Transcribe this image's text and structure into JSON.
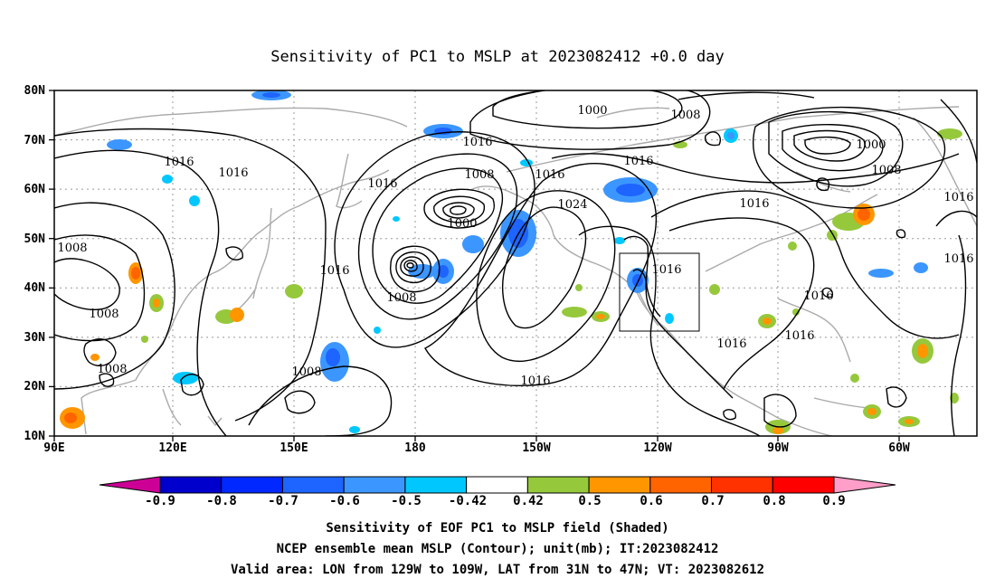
{
  "title": "Sensitivity of PC1 to MSLP at 2023082412 +0.0 day",
  "lat_labels": [
    "80N",
    "70N",
    "60N",
    "50N",
    "40N",
    "30N",
    "20N",
    "10N"
  ],
  "lon_labels": [
    "90E",
    "120E",
    "150E",
    "180",
    "150W",
    "120W",
    "90W",
    "60W"
  ],
  "contour_labels": [
    "1000",
    "1008",
    "1016",
    "1016",
    "1000",
    "1008",
    "1016",
    "1016",
    "1016",
    "1016",
    "1008",
    "1016",
    "1024",
    "1000",
    "1016",
    "1008",
    "1008",
    "1008",
    "1016",
    "1008",
    "1016",
    "1016",
    "1016",
    "1016",
    "1008",
    "1016",
    "1016"
  ],
  "colorbar": {
    "labels": [
      "-0.9",
      "-0.8",
      "-0.7",
      "-0.6",
      "-0.5",
      "-0.42",
      "0.42",
      "0.5",
      "0.6",
      "0.7",
      "0.8",
      "0.9"
    ],
    "colors": [
      "#0000cd",
      "#0028ff",
      "#1e64ff",
      "#3c96ff",
      "#00c8ff",
      "#ffffff",
      "#96c83c",
      "#ff9600",
      "#ff6400",
      "#ff3200",
      "#ff0000"
    ],
    "low_end_color": "#cd0096",
    "high_end_color": "#ff9ec8"
  },
  "captions": [
    "Sensitivity of EOF PC1 to MSLP field (Shaded)",
    "NCEP ensemble mean MSLP (Contour); unit(mb); IT:2023082412",
    "Valid area: LON from 129W to 109W, LAT from 31N to 47N; VT: 2023082612"
  ]
}
